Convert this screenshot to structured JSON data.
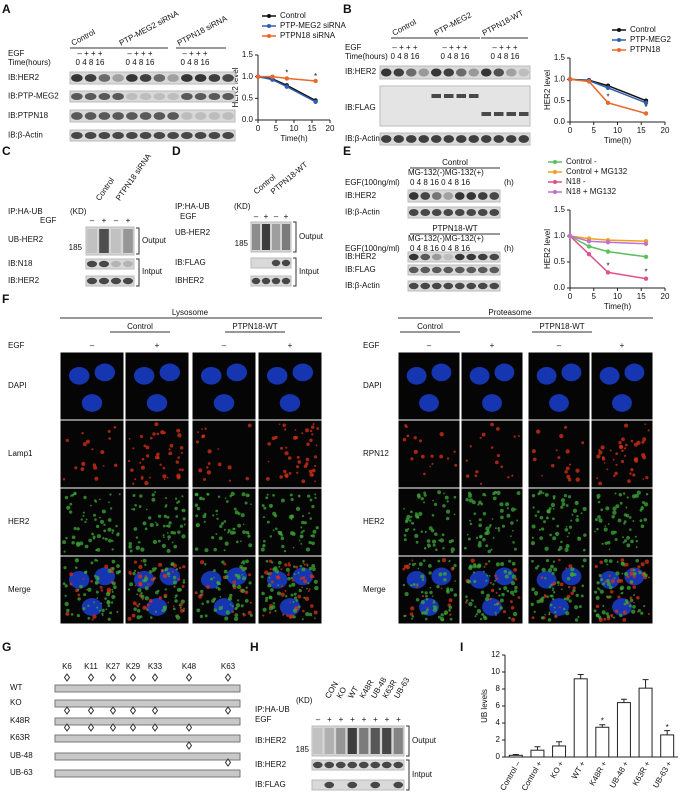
{
  "chart_data": [
    {
      "type": "line",
      "ylabel": "HER2 level",
      "xlabel": "Time(h)",
      "x": [
        0,
        4,
        8,
        16
      ],
      "xlim": [
        0,
        20
      ],
      "xticks": [
        0,
        5,
        10,
        15,
        20
      ],
      "ylim": [
        0,
        1.5
      ],
      "yticks": [
        {
          "value": 0,
          "label": "0.0"
        },
        0.5,
        {
          "value": 1,
          "label": "1.0"
        },
        1.5
      ],
      "legend": "top",
      "series": [
        {
          "name": "Control",
          "color": "#111111",
          "values": [
            1,
            0.95,
            0.8,
            0.45
          ]
        },
        {
          "name": "PTP-MEG2 siRNA",
          "color": "#2f5fb0",
          "values": [
            1,
            0.93,
            0.77,
            0.42
          ]
        },
        {
          "name": "PTPN18 siRNA",
          "color": "#e8692a",
          "values": [
            1,
            1.0,
            0.96,
            0.9
          ]
        }
      ],
      "annotations": [
        {
          "text": "*",
          "x": 8,
          "y": 1.08
        },
        {
          "text": "*",
          "x": 16,
          "y": 1.0
        }
      ]
    },
    {
      "type": "line",
      "ylabel": "HER2 level",
      "xlabel": "Time(h)",
      "x": [
        0,
        4,
        8,
        16
      ],
      "xlim": [
        0,
        20
      ],
      "xticks": [
        0,
        5,
        10,
        15,
        20
      ],
      "ylim": [
        0,
        1.5
      ],
      "yticks": [
        {
          "value": 0,
          "label": "0.0"
        },
        0.5,
        {
          "value": 1,
          "label": "1.0"
        },
        1.5
      ],
      "legend": "top",
      "series": [
        {
          "name": "Control",
          "color": "#111111",
          "values": [
            1,
            0.98,
            0.85,
            0.5
          ]
        },
        {
          "name": "PTP-MEG2",
          "color": "#2f5fb0",
          "values": [
            1,
            0.97,
            0.8,
            0.45
          ]
        },
        {
          "name": "PTPN18",
          "color": "#e8692a",
          "values": [
            1,
            0.95,
            0.45,
            0.2
          ]
        }
      ],
      "annotations": [
        {
          "text": "*",
          "x": 8,
          "y": 0.58
        },
        {
          "text": "*",
          "x": 16,
          "y": 0.33
        }
      ]
    },
    {
      "type": "line",
      "ylabel": "HER2 level",
      "xlabel": "Time(h)",
      "x": [
        0,
        4,
        8,
        16
      ],
      "xlim": [
        0,
        20
      ],
      "xticks": [
        0,
        5,
        10,
        15,
        20
      ],
      "ylim": [
        0,
        1.5
      ],
      "yticks": [
        {
          "value": 0,
          "label": "0.0"
        },
        0.5,
        {
          "value": 1,
          "label": "1.0"
        },
        1.5
      ],
      "legend": "top",
      "series": [
        {
          "name": "Control -",
          "color": "#5cc05c",
          "values": [
            1,
            0.8,
            0.7,
            0.6
          ]
        },
        {
          "name": "Control + MG132",
          "color": "#f0a020",
          "values": [
            1,
            0.95,
            0.92,
            0.9
          ]
        },
        {
          "name": "N18 -",
          "color": "#e0508a",
          "values": [
            1,
            0.65,
            0.3,
            0.18
          ]
        },
        {
          "name": "N18 + MG132",
          "color": "#c070d0",
          "values": [
            1,
            0.9,
            0.88,
            0.85
          ]
        }
      ],
      "annotations": [
        {
          "text": "*",
          "x": 8,
          "y": 0.42
        },
        {
          "text": "*",
          "x": 16,
          "y": 0.3
        }
      ]
    },
    {
      "type": "bar",
      "ylabel": "UB levels",
      "categories": [
        "Control –",
        "Control +",
        "KO +",
        "WT +",
        "K48R +",
        "UB-48 +",
        "K63R +",
        "UB-63 +"
      ],
      "values": [
        0.2,
        0.8,
        1.3,
        9.2,
        3.5,
        6.4,
        8.1,
        2.6
      ],
      "errors": [
        0.1,
        0.4,
        0.5,
        0.5,
        0.3,
        0.4,
        1.0,
        0.5
      ],
      "color": "#ffffff",
      "ylim": [
        0,
        12
      ],
      "yticks": [
        0,
        2,
        4,
        6,
        8,
        10,
        12
      ],
      "annotations": [
        {
          "text": "*",
          "x": 4,
          "y": 4.2
        },
        {
          "text": "*",
          "x": 7,
          "y": 3.4
        }
      ]
    }
  ],
  "figure": {
    "A": {
      "label": "A",
      "headers": [
        "Control",
        "PTP-MEG2 siRNA",
        "PTPN18 siRNA"
      ],
      "egf": "EGF",
      "time": "Time(hours)",
      "egf_signs": "– + + +",
      "times": "0 4 8 16",
      "blots": [
        "IB:HER2",
        "IB:PTP-MEG2",
        "IB:PTPN18",
        "IB:β-Actin"
      ]
    },
    "B": {
      "label": "B",
      "headers": [
        "Control",
        "PTP-MEG2",
        "PTPN18-WT"
      ],
      "egf": "EGF",
      "time": "Time(hours)",
      "egf_signs": "– + + +",
      "times": "0 4 8 16",
      "blots": [
        "IB:HER2",
        "IB:FLAG",
        "IB:β-Actin"
      ]
    },
    "C": {
      "label": "C",
      "ip": "IP:HA-UB",
      "kd": "(KD)",
      "headers": [
        "Control",
        "PTPN18 siRNA"
      ],
      "egf": "EGF",
      "egf_signs": [
        "–",
        "+",
        "–",
        "+"
      ],
      "marker": "185",
      "blots": [
        "UB-HER2",
        "IB:N18",
        "IB:HER2"
      ],
      "groups": [
        "Output",
        "Intput"
      ]
    },
    "D": {
      "label": "D",
      "ip": "IP:HA-UB",
      "kd": "(KD)",
      "headers": [
        "Control",
        "PTPN18-WT"
      ],
      "egf": "EGF",
      "egf_signs": [
        "–",
        "+",
        "–",
        "+"
      ],
      "marker": "185",
      "blots": [
        "UB-HER2",
        "IB:FLAG",
        "IBHER2"
      ],
      "groups": [
        "Output",
        "Intput"
      ]
    },
    "E": {
      "label": "E",
      "blocks": [
        {
          "header": "Control",
          "mg": "MG-132(-)MG-132(+)",
          "egf": "EGF(100ng/ml)",
          "times": "0 4 8 16 0 4 8 16",
          "unit": "(h)",
          "blots": [
            "IB:HER2",
            "IB:β-Actin"
          ]
        },
        {
          "header": "PTPN18-WT",
          "mg": "MG-132(-)MG-132(+)",
          "egf": "EGF(100ng/ml)",
          "times": "0 4 8 16 0 4 8 16",
          "unit": "(h)",
          "blots": [
            "IB:HER2",
            "IB:FLAG",
            "IB:β-Actin"
          ]
        }
      ]
    },
    "F": {
      "label": "F",
      "egf": "EGF",
      "signs": [
        "–",
        "+",
        "–",
        "+"
      ],
      "sections": [
        {
          "title": "Lysosome",
          "headers": [
            "Control",
            "PTPN18-WT"
          ],
          "rows": [
            "DAPI",
            "Lamp1",
            "HER2",
            "Merge"
          ]
        },
        {
          "title": "Proteasome",
          "headers": [
            "Control",
            "PTPN18-WT"
          ],
          "rows": [
            "DAPI",
            "RPN12",
            "HER2",
            "Merge"
          ]
        }
      ]
    },
    "G": {
      "label": "G",
      "sites": [
        "K6",
        "K11",
        "K27",
        "K29",
        "K33",
        "K48",
        "K63"
      ],
      "constructs": [
        "WT",
        "KO",
        "K48R",
        "K63R",
        "UB-48",
        "UB-63"
      ]
    },
    "H": {
      "label": "H",
      "ip": "IP:HA-UB",
      "kd": "(KD)",
      "headers": [
        "CON",
        "KO",
        "WT",
        "K48R",
        "UB-48",
        "K63R",
        "UB-63"
      ],
      "egf": "EGF",
      "egf_signs": [
        "–",
        "+",
        "+",
        "+",
        "+",
        "+",
        "+",
        "+"
      ],
      "marker": "185",
      "blots": [
        "IB:HER2",
        "IB:HER2",
        "IB:FLAG"
      ],
      "groups": [
        "Output",
        "Intput"
      ]
    },
    "I": {
      "label": "I"
    }
  }
}
